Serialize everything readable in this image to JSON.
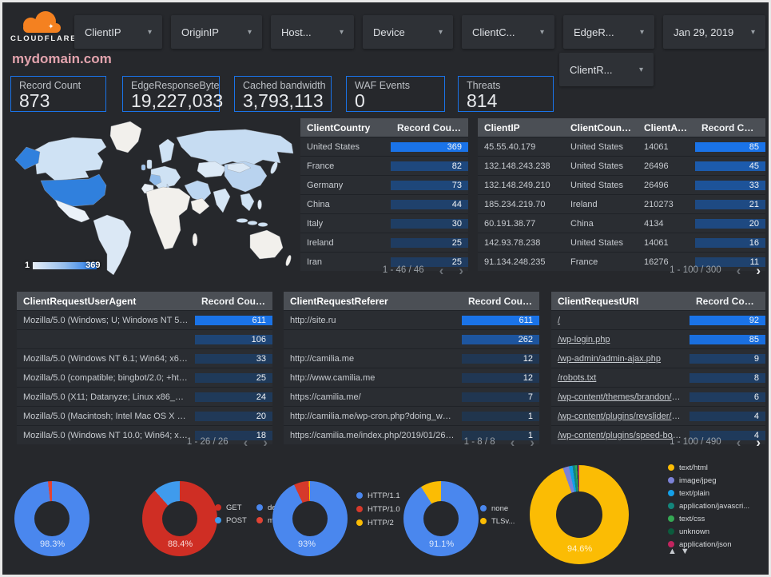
{
  "brand": {
    "name": "CLOUDFLARE"
  },
  "page_title": "mydomain.com",
  "icons": {
    "dropdown_caret": "▾",
    "sort_desc": "▼",
    "chevron_left": "‹",
    "chevron_right": "›",
    "legend_up": "▲",
    "legend_down": "▼"
  },
  "colors": {
    "accent_blue": "#1a73e8",
    "heat_dark": "#203448",
    "heat_bright": "#1a73e8",
    "scorecard_border": "#1a73e8",
    "title_pink": "#e2a3ad",
    "cloudflare_orange": "#f48120"
  },
  "filters": [
    {
      "id": "clientip",
      "label": "ClientIP"
    },
    {
      "id": "originip",
      "label": "OriginIP"
    },
    {
      "id": "host",
      "label": "Host..."
    },
    {
      "id": "device",
      "label": "Device"
    },
    {
      "id": "clientcountry",
      "label": "ClientC..."
    },
    {
      "id": "edgeresponse",
      "label": "EdgeR..."
    },
    {
      "id": "date-range",
      "label": "Jan 29, 2019"
    }
  ],
  "filter_row2": {
    "id": "clientrequest",
    "label": "ClientR..."
  },
  "scorecards": [
    {
      "label": "Record Count",
      "value": "873"
    },
    {
      "label": "EdgeResponseBytes",
      "value": "19,227,033"
    },
    {
      "label": "Cached bandwidth",
      "value": "3,793,113"
    },
    {
      "label": "WAF Events",
      "value": "0"
    },
    {
      "label": "Threats",
      "value": "814"
    }
  ],
  "map": {
    "legend_min": "1",
    "legend_max": "369"
  },
  "tables": [
    {
      "id": "country",
      "columns": [
        "ClientCountry",
        "Record Count"
      ],
      "value_col": 1,
      "rows": [
        [
          "United States",
          369
        ],
        [
          "France",
          82
        ],
        [
          "Germany",
          73
        ],
        [
          "China",
          44
        ],
        [
          "Italy",
          30
        ],
        [
          "Ireland",
          25
        ],
        [
          "Iran",
          25
        ]
      ],
      "pagination": {
        "label": "1 - 46 / 46",
        "prev_enabled": false,
        "next_enabled": false
      }
    },
    {
      "id": "ip",
      "columns": [
        "ClientIP",
        "ClientCountry",
        "ClientASN",
        "Record Count"
      ],
      "value_col": 3,
      "rows": [
        [
          "45.55.40.179",
          "United States",
          "14061",
          85
        ],
        [
          "132.148.243.238",
          "United States",
          "26496",
          45
        ],
        [
          "132.148.249.210",
          "United States",
          "26496",
          33
        ],
        [
          "185.234.219.70",
          "Ireland",
          "210273",
          21
        ],
        [
          "60.191.38.77",
          "China",
          "4134",
          20
        ],
        [
          "142.93.78.238",
          "United States",
          "14061",
          16
        ],
        [
          "91.134.248.235",
          "France",
          "16276",
          11
        ]
      ],
      "pagination": {
        "label": "1 - 100 / 300",
        "prev_enabled": false,
        "next_enabled": true
      }
    },
    {
      "id": "ua",
      "columns": [
        "ClientRequestUserAgent",
        "Record Count"
      ],
      "value_col": 1,
      "rows": [
        [
          "Mozilla/5.0 (Windows; U; Windows NT 5.1; en-U...",
          611
        ],
        [
          "",
          106
        ],
        [
          "Mozilla/5.0 (Windows NT 6.1; Win64; x64; rv:64...",
          33
        ],
        [
          "Mozilla/5.0 (compatible; bingbot/2.0; +http://w...",
          25
        ],
        [
          "Mozilla/5.0 (X11; Datanyze; Linux x86_64) Appl...",
          24
        ],
        [
          "Mozilla/5.0 (Macintosh; Intel Mac OS X 10.11; r...",
          20
        ],
        [
          "Mozilla/5.0 (Windows NT 10.0; Win64; x64) App...",
          18
        ]
      ],
      "pagination": {
        "label": "1 - 26 / 26",
        "prev_enabled": false,
        "next_enabled": false
      }
    },
    {
      "id": "referer",
      "columns": [
        "ClientRequestReferer",
        "Record Count"
      ],
      "value_col": 1,
      "rows": [
        [
          "http://site.ru",
          611
        ],
        [
          "",
          262
        ],
        [
          "http://camilia.me",
          12
        ],
        [
          "http://www.camilia.me",
          12
        ],
        [
          "https://camilia.me/",
          7
        ],
        [
          "http://camilia.me/wp-cron.php?doing_wp_cron...",
          1
        ],
        [
          "https://camilia.me/index.php/2019/01/26/stor...",
          1
        ]
      ],
      "pagination": {
        "label": "1 - 8 / 8",
        "prev_enabled": false,
        "next_enabled": false
      }
    },
    {
      "id": "uri",
      "columns": [
        "ClientRequestURI",
        "Record Count"
      ],
      "value_col": 1,
      "links": true,
      "rows": [
        [
          "/",
          92
        ],
        [
          "/wp-login.php",
          85
        ],
        [
          "/wp-admin/admin-ajax.php",
          9
        ],
        [
          "/robots.txt",
          8
        ],
        [
          "/wp-content/themes/brandon/plu...",
          6
        ],
        [
          "/wp-content/plugins/revslider/rs-p...",
          4
        ],
        [
          "/wp-content/plugins/speed-booste...",
          4
        ]
      ],
      "pagination": {
        "label": "1 - 100 / 490",
        "prev_enabled": false,
        "next_enabled": true
      }
    }
  ],
  "chart_data": [
    {
      "type": "choropleth",
      "name": "client-country-map",
      "min": 1,
      "max": 369,
      "values": {
        "United States": 369,
        "France": 82,
        "Germany": 73,
        "China": 44,
        "Italy": 30,
        "Ireland": 25,
        "Iran": 25
      },
      "legend_position": "bottom-left"
    },
    {
      "type": "donut",
      "name": "device-type",
      "center_label": "98.3%",
      "series": [
        {
          "label": "deskt...",
          "value": 98.3,
          "color": "#4a87ee"
        },
        {
          "label": "mobile",
          "value": 1.7,
          "color": "#e14334"
        }
      ],
      "legend_position": "right"
    },
    {
      "type": "donut",
      "name": "http-method",
      "center_label": "88.4%",
      "series": [
        {
          "label": "GET",
          "value": 88.4,
          "color": "#cf2e24"
        },
        {
          "label": "POST",
          "value": 11.6,
          "color": "#3f9bed"
        }
      ],
      "legend_position": "right"
    },
    {
      "type": "donut",
      "name": "http-protocol",
      "center_label": "93%",
      "series": [
        {
          "label": "HTTP/1.1",
          "value": 93,
          "color": "#4a87ee"
        },
        {
          "label": "HTTP/1.0",
          "value": 6.5,
          "color": "#d6392b"
        },
        {
          "label": "HTTP/2",
          "value": 0.5,
          "color": "#fbbc04"
        }
      ],
      "legend_position": "right"
    },
    {
      "type": "donut",
      "name": "tls-version",
      "center_label": "91.1%",
      "series": [
        {
          "label": "none",
          "value": 91.1,
          "color": "#4a87ee"
        },
        {
          "label": "TLSv...",
          "value": 8.9,
          "color": "#fbbc04"
        }
      ],
      "legend_position": "right"
    },
    {
      "type": "donut",
      "name": "content-type",
      "center_label": "94.6%",
      "series": [
        {
          "label": "text/html",
          "value": 94.6,
          "color": "#fbbc04"
        },
        {
          "label": "image/jpeg",
          "value": 2.0,
          "color": "#7c82d7"
        },
        {
          "label": "text/plain",
          "value": 1.2,
          "color": "#14a0e8"
        },
        {
          "label": "application/javascri...",
          "value": 0.9,
          "color": "#13857b"
        },
        {
          "label": "text/css",
          "value": 0.5,
          "color": "#35a854"
        },
        {
          "label": "unknown",
          "value": 0.4,
          "color": "#0c5b3d"
        },
        {
          "label": "application/json",
          "value": 0.4,
          "color": "#c2245f"
        }
      ],
      "legend_position": "right",
      "legend_scroll_arrows": true
    }
  ]
}
